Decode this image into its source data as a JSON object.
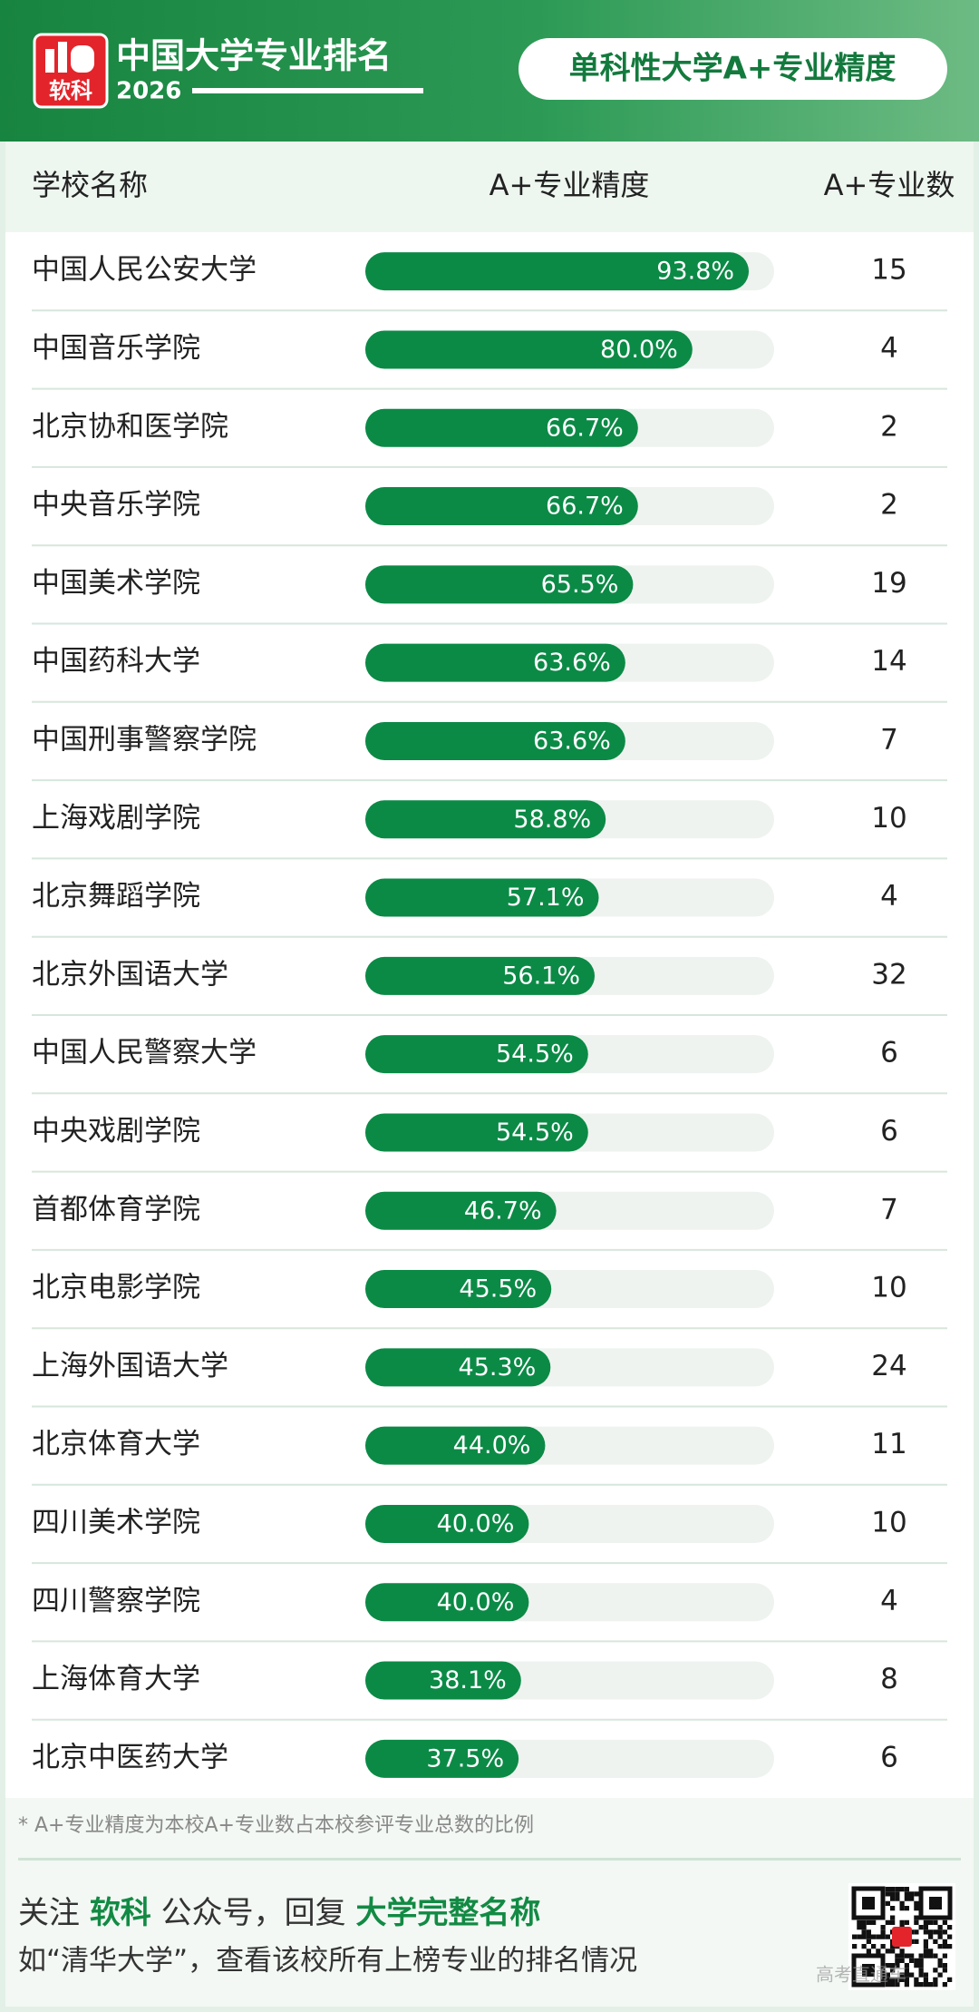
{
  "header": {
    "logo_text": "软科",
    "title": "中国大学专业排名",
    "year": "2026",
    "badge": "单科性大学A+专业精度"
  },
  "chart_data": {
    "type": "bar",
    "columns": [
      "学校名称",
      "A+专业精度",
      "A+专业数"
    ],
    "categories": [
      "中国人民公安大学",
      "中国音乐学院",
      "北京协和医学院",
      "中央音乐学院",
      "中国美术学院",
      "中国药科大学",
      "中国刑事警察学院",
      "上海戏剧学院",
      "北京舞蹈学院",
      "北京外国语大学",
      "中国人民警察大学",
      "中央戏剧学院",
      "首都体育学院",
      "北京电影学院",
      "上海外国语大学",
      "北京体育大学",
      "四川美术学院",
      "四川警察学院",
      "上海体育大学",
      "北京中医药大学"
    ],
    "values": [
      93.8,
      80.0,
      66.7,
      66.7,
      65.5,
      63.6,
      63.6,
      58.8,
      57.1,
      56.1,
      54.5,
      54.5,
      46.7,
      45.5,
      45.3,
      44.0,
      40.0,
      40.0,
      38.1,
      37.5
    ],
    "value_labels": [
      "93.8%",
      "80.0%",
      "66.7%",
      "66.7%",
      "65.5%",
      "63.6%",
      "63.6%",
      "58.8%",
      "57.1%",
      "56.1%",
      "54.5%",
      "54.5%",
      "46.7%",
      "45.5%",
      "45.3%",
      "44.0%",
      "40.0%",
      "40.0%",
      "38.1%",
      "37.5%"
    ],
    "counts": [
      15,
      4,
      2,
      2,
      19,
      14,
      7,
      10,
      4,
      32,
      6,
      6,
      7,
      10,
      24,
      11,
      10,
      4,
      8,
      6
    ],
    "xlim": [
      0,
      100
    ],
    "color": "#0b8a46"
  },
  "footnote": "* A+专业精度为本校A+专业数占本校参评专业总数的比例",
  "footer": {
    "line1": [
      "关注 ",
      "软科",
      " 公众号，回复 ",
      "大学完整名称"
    ],
    "line2": "如“清华大学”，查看该校所有上榜专业的排名情况",
    "watermark": "高考直通车"
  }
}
